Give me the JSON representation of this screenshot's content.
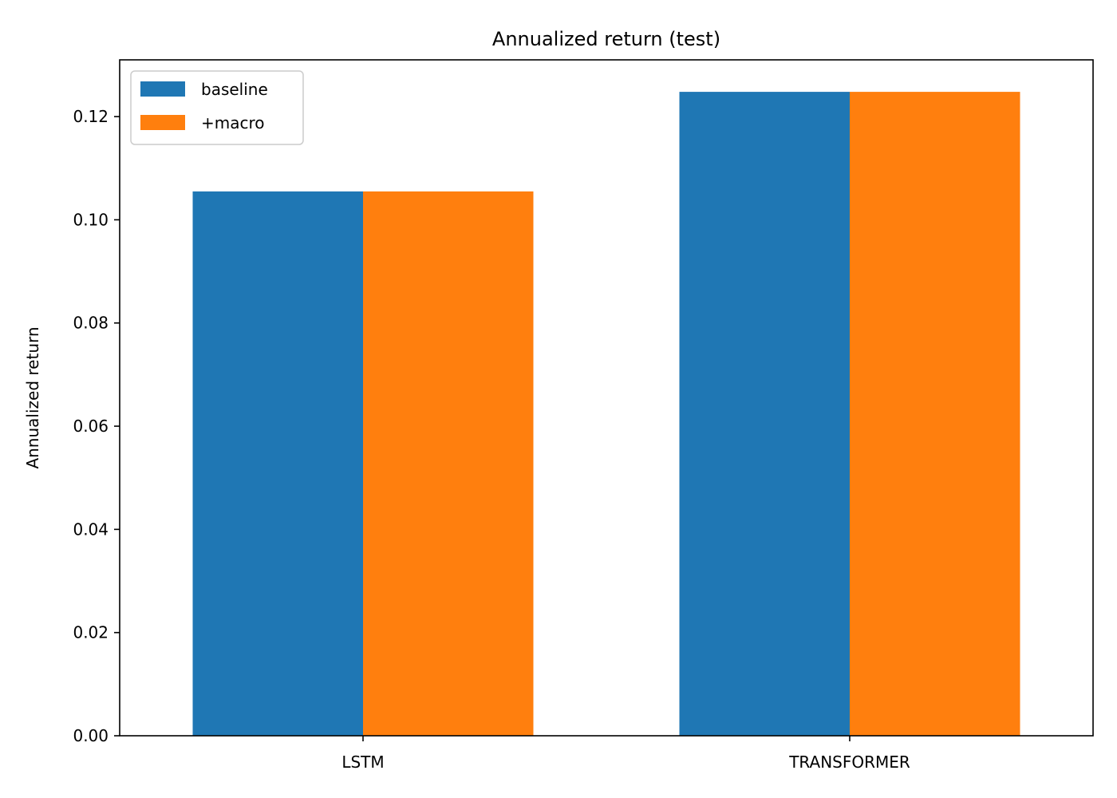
{
  "chart_data": {
    "type": "bar",
    "title": "Annualized return (test)",
    "xlabel": "",
    "ylabel": "Annualized return",
    "categories": [
      "LSTM",
      "TRANSFORMER"
    ],
    "series": [
      {
        "name": "baseline",
        "color": "#1f77b4",
        "values": [
          0.1055,
          0.1248
        ]
      },
      {
        "name": "+macro",
        "color": "#ff7f0e",
        "values": [
          0.1055,
          0.1248
        ]
      }
    ],
    "ylim": [
      0,
      0.131
    ],
    "yticks": [
      "0.00",
      "0.02",
      "0.04",
      "0.06",
      "0.08",
      "0.10",
      "0.12"
    ],
    "legend_position": "top-left",
    "grid": false
  }
}
